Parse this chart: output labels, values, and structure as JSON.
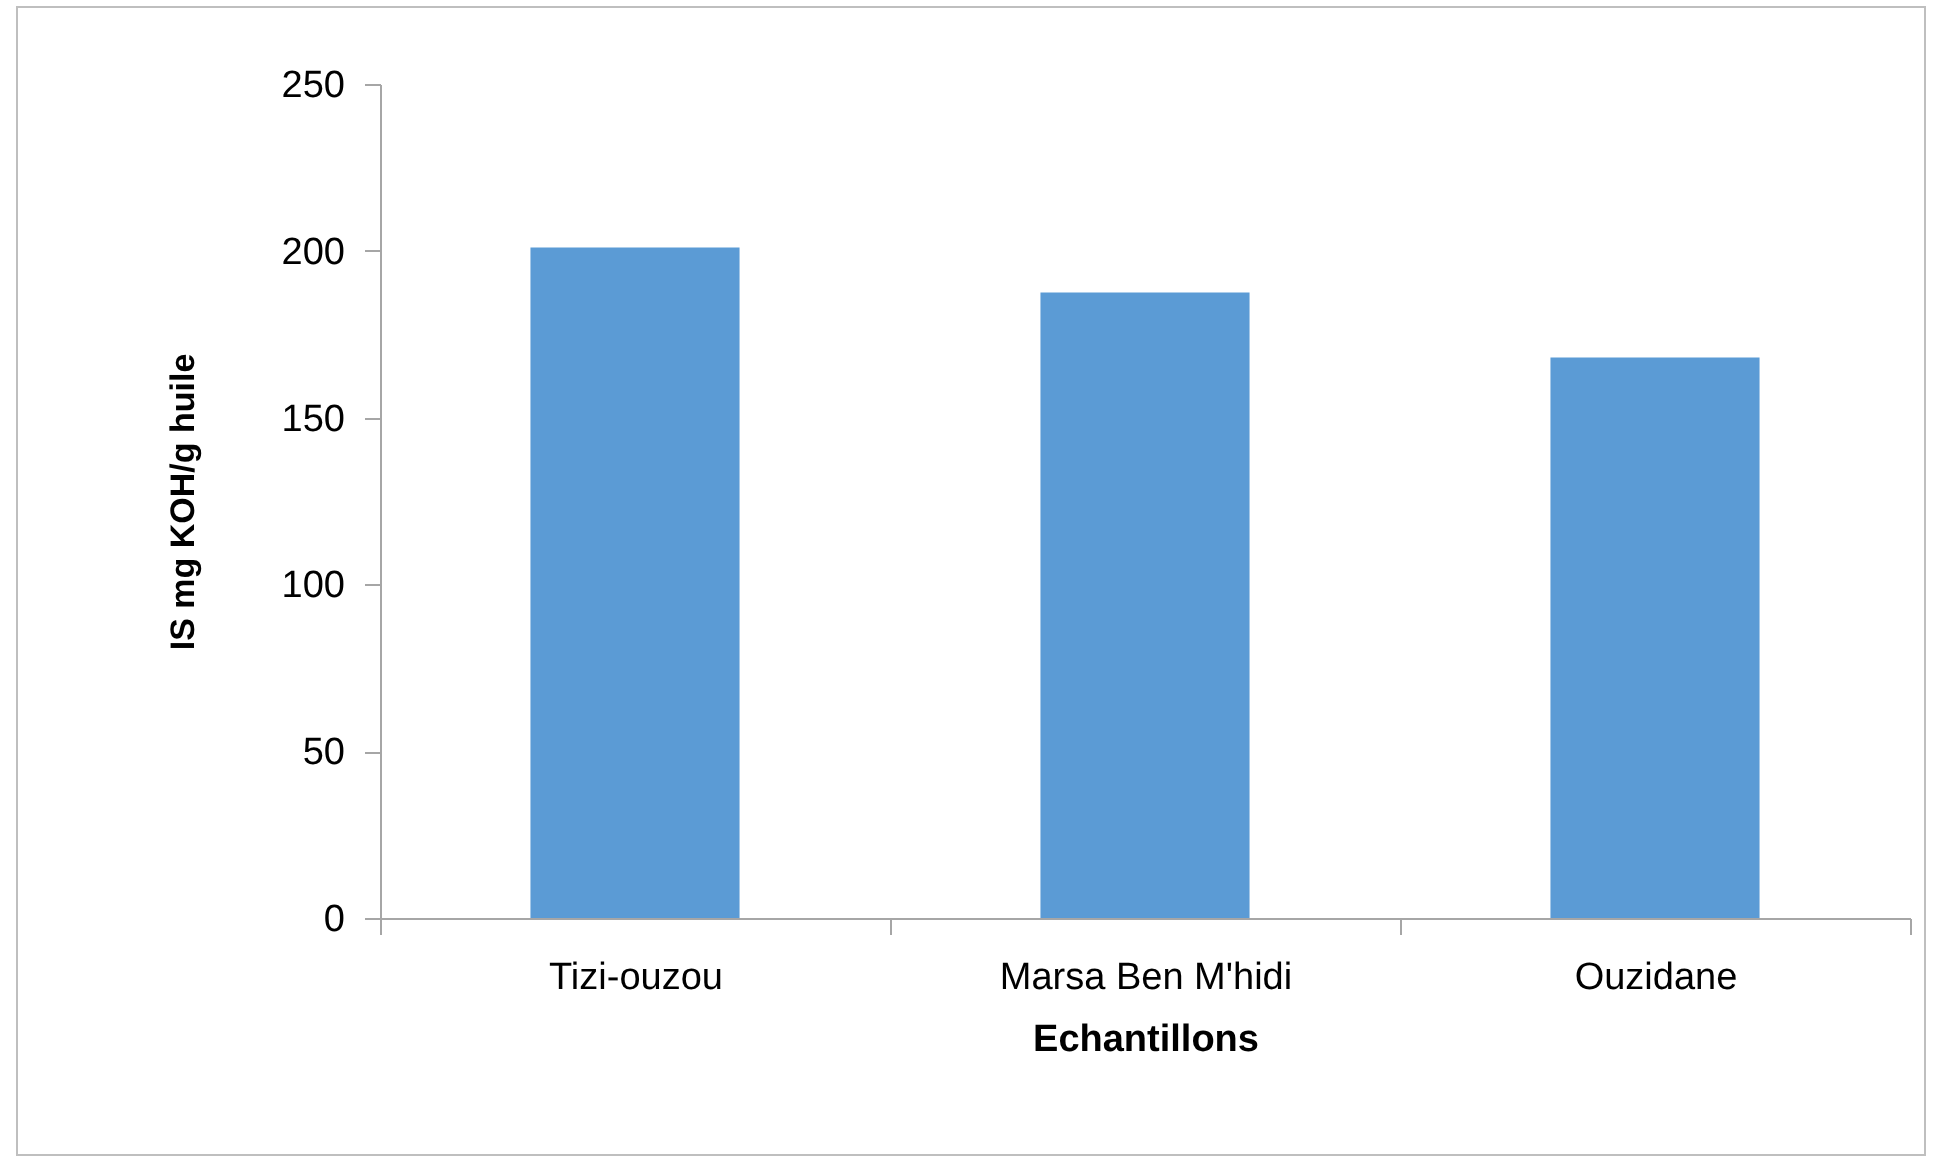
{
  "chart_data": {
    "type": "bar",
    "xlabel": "Echantillons",
    "ylabel": "IS mg KOH/g huile",
    "categories": [
      "Tizi-ouzou",
      "Marsa Ben M'hidi",
      "Ouzidane"
    ],
    "values": [
      201,
      187.5,
      168
    ],
    "color": "#5b9bd5",
    "ylim": [
      0,
      250
    ],
    "yticks": [
      0,
      50,
      100,
      150,
      200,
      250
    ],
    "grid": false
  }
}
